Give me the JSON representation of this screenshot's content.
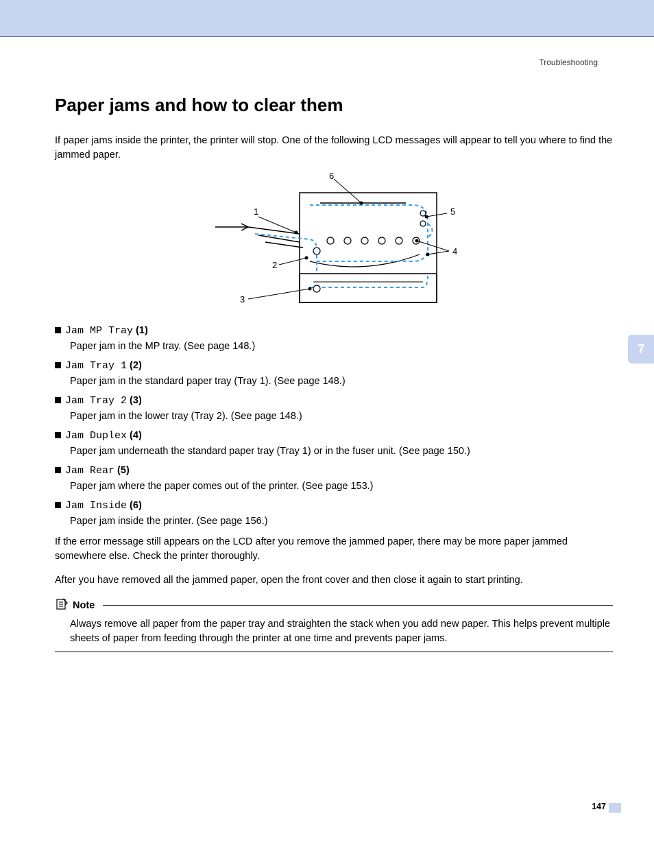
{
  "header": {
    "section": "Troubleshooting"
  },
  "title": "Paper jams and how to clear them",
  "intro": "If paper jams inside the printer, the printer will stop. One of the following LCD messages will appear to tell you where to find the jammed paper.",
  "diagram": {
    "labels": [
      "1",
      "2",
      "3",
      "4",
      "5",
      "6"
    ],
    "colors": {
      "outline": "#000000",
      "path": "#3aa0e8",
      "roller": "#000000"
    }
  },
  "jams": [
    {
      "code": "Jam MP Tray",
      "num": "(1)",
      "desc": "Paper jam in the MP tray. (See page 148.)"
    },
    {
      "code": "Jam Tray 1",
      "num": "(2)",
      "desc": "Paper jam in the standard paper tray (Tray 1). (See page 148.)"
    },
    {
      "code": "Jam Tray 2",
      "num": "(3)",
      "desc": "Paper jam in the lower tray (Tray 2). (See page 148.)"
    },
    {
      "code": "Jam Duplex",
      "num": "(4)",
      "desc": "Paper jam underneath the standard paper tray (Tray 1) or in the fuser unit. (See page 150.)"
    },
    {
      "code": "Jam Rear",
      "num": "(5)",
      "desc": "Paper jam where the paper comes out of the printer. (See page 153.)"
    },
    {
      "code": "Jam Inside",
      "num": "(6)",
      "desc": "Paper jam inside the printer. (See page 156.)"
    }
  ],
  "after1": "If the error message still appears on the LCD after you remove the jammed paper, there may be more paper jammed somewhere else. Check the printer thoroughly.",
  "after2": "After you have removed all the jammed paper, open the front cover and then close it again to start printing.",
  "note": {
    "title": "Note",
    "body": "Always remove all paper from the paper tray and straighten the stack when you add new paper. This helps prevent multiple sheets of paper from feeding through the printer at one time and prevents paper jams."
  },
  "chapter": "7",
  "page": "147"
}
